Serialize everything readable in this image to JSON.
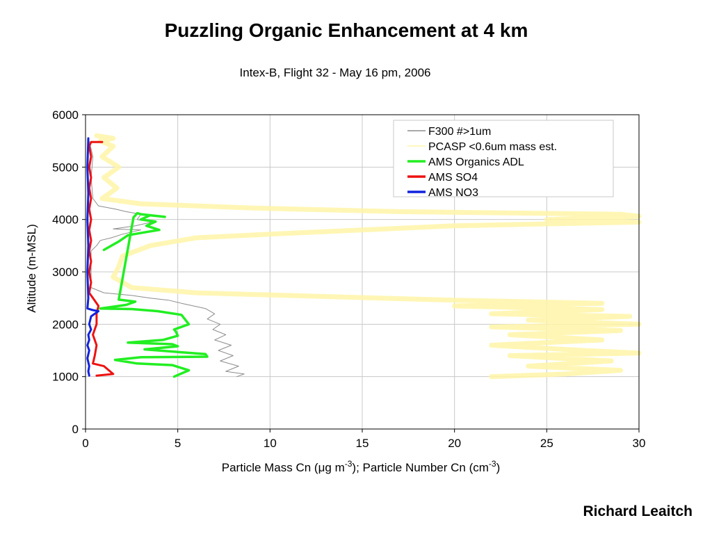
{
  "title": "Puzzling Organic Enhancement at 4 km",
  "subtitle": "Intex-B, Flight 32 - May 16 pm, 2006",
  "author": "Richard Leaitch",
  "chart_data": {
    "type": "line",
    "xlabel_parts": [
      "Particle Mass Cn (",
      "μ",
      "g m",
      "-3",
      "); Particle Number Cn (cm",
      "-3",
      ")"
    ],
    "ylabel": "Altitude (m-MSL)",
    "xlim": [
      0,
      30
    ],
    "ylim": [
      0,
      6000
    ],
    "xticks": [
      0,
      5,
      10,
      15,
      20,
      25,
      30
    ],
    "yticks": [
      0,
      1000,
      2000,
      3000,
      4000,
      5000,
      6000
    ],
    "grid": true,
    "legend_position": "top-right",
    "series": [
      {
        "name": "F300 #>1um",
        "color": "#8c8c8c",
        "points": [
          [
            0.2,
            5500
          ],
          [
            0.4,
            5200
          ],
          [
            0.3,
            4800
          ],
          [
            0.4,
            4400
          ],
          [
            0.7,
            4260
          ],
          [
            1.6,
            4200
          ],
          [
            2.2,
            4150
          ],
          [
            3.0,
            4100
          ],
          [
            2.8,
            4000
          ],
          [
            3.6,
            3950
          ],
          [
            2.7,
            3880
          ],
          [
            1.5,
            3820
          ],
          [
            3.0,
            3800
          ],
          [
            2.0,
            3720
          ],
          [
            1.4,
            3650
          ],
          [
            0.8,
            3600
          ],
          [
            0.6,
            3500
          ],
          [
            0.3,
            3400
          ],
          [
            0.3,
            3000
          ],
          [
            0.3,
            2700
          ],
          [
            1.0,
            2600
          ],
          [
            2.5,
            2550
          ],
          [
            3.5,
            2500
          ],
          [
            4.5,
            2460
          ],
          [
            5.2,
            2400
          ],
          [
            6.5,
            2300
          ],
          [
            7.0,
            2200
          ],
          [
            6.6,
            2100
          ],
          [
            7.3,
            2000
          ],
          [
            6.9,
            1900
          ],
          [
            7.6,
            1800
          ],
          [
            7.0,
            1700
          ],
          [
            7.9,
            1600
          ],
          [
            7.2,
            1500
          ],
          [
            8.0,
            1400
          ],
          [
            7.3,
            1300
          ],
          [
            8.3,
            1200
          ],
          [
            7.6,
            1100
          ],
          [
            8.6,
            1050
          ],
          [
            8.2,
            1000
          ]
        ]
      },
      {
        "name": "PCASP <0.6um mass est.",
        "color": "#fff5a8",
        "points": [
          [
            0.6,
            5600
          ],
          [
            1.5,
            5550
          ],
          [
            0.8,
            5500
          ],
          [
            1.5,
            5400
          ],
          [
            0.9,
            5200
          ],
          [
            1.8,
            5000
          ],
          [
            1.0,
            4800
          ],
          [
            1.7,
            4600
          ],
          [
            0.9,
            4400
          ],
          [
            3.0,
            4300
          ],
          [
            9.0,
            4220
          ],
          [
            17.0,
            4150
          ],
          [
            29.0,
            4100
          ],
          [
            30.0,
            4060
          ],
          [
            25.0,
            4000
          ],
          [
            30.0,
            3950
          ],
          [
            20.0,
            3880
          ],
          [
            15.0,
            3800
          ],
          [
            10.0,
            3720
          ],
          [
            6.0,
            3650
          ],
          [
            3.5,
            3500
          ],
          [
            2.0,
            3300
          ],
          [
            1.8,
            3100
          ],
          [
            1.5,
            2900
          ],
          [
            2.5,
            2700
          ],
          [
            6.0,
            2600
          ],
          [
            14.0,
            2520
          ],
          [
            20.0,
            2460
          ],
          [
            28.0,
            2400
          ],
          [
            20.0,
            2350
          ],
          [
            28.0,
            2280
          ],
          [
            22.0,
            2200
          ],
          [
            29.5,
            2150
          ],
          [
            24.0,
            2080
          ],
          [
            30.0,
            2000
          ],
          [
            22.0,
            1950
          ],
          [
            29.0,
            1880
          ],
          [
            23.0,
            1800
          ],
          [
            28.0,
            1700
          ],
          [
            22.0,
            1600
          ],
          [
            27.0,
            1500
          ],
          [
            30.0,
            1450
          ],
          [
            23.0,
            1400
          ],
          [
            28.5,
            1300
          ],
          [
            24.0,
            1200
          ],
          [
            29.0,
            1120
          ],
          [
            26.0,
            1050
          ],
          [
            22.0,
            1000
          ]
        ]
      },
      {
        "name": "AMS Organics ADL",
        "color": "#22ee22",
        "points": [
          [
            1.0,
            3420
          ],
          [
            1.8,
            3580
          ],
          [
            2.3,
            3700
          ],
          [
            3.3,
            3760
          ],
          [
            4.0,
            3800
          ],
          [
            3.3,
            3880
          ],
          [
            3.8,
            3960
          ],
          [
            3.0,
            4000
          ],
          [
            3.5,
            4080
          ],
          [
            4.3,
            4050
          ],
          [
            3.0,
            4100
          ],
          [
            2.8,
            4120
          ],
          [
            2.6,
            4040
          ],
          [
            1.8,
            2470
          ],
          [
            2.7,
            2430
          ],
          [
            2.2,
            2370
          ],
          [
            1.8,
            2350
          ],
          [
            0.8,
            2300
          ],
          [
            2.5,
            2290
          ],
          [
            3.9,
            2250
          ],
          [
            5.2,
            2180
          ],
          [
            5.6,
            2000
          ],
          [
            4.8,
            1900
          ],
          [
            4.9,
            1860
          ],
          [
            5.0,
            1780
          ],
          [
            4.2,
            1700
          ],
          [
            2.3,
            1650
          ],
          [
            4.7,
            1620
          ],
          [
            5.0,
            1580
          ],
          [
            3.2,
            1520
          ],
          [
            6.5,
            1430
          ],
          [
            6.6,
            1380
          ],
          [
            3.0,
            1370
          ],
          [
            1.6,
            1320
          ],
          [
            2.8,
            1250
          ],
          [
            4.7,
            1220
          ],
          [
            5.6,
            1120
          ],
          [
            5.0,
            1030
          ],
          [
            4.8,
            1000
          ]
        ]
      },
      {
        "name": "AMS SO4",
        "color": "#ee1111",
        "points": [
          [
            0.9,
            5480
          ],
          [
            0.3,
            5480
          ],
          [
            0.2,
            5400
          ],
          [
            0.3,
            5200
          ],
          [
            0.2,
            5000
          ],
          [
            0.3,
            4800
          ],
          [
            0.2,
            4600
          ],
          [
            0.3,
            4400
          ],
          [
            0.2,
            4200
          ],
          [
            0.3,
            4000
          ],
          [
            0.2,
            3800
          ],
          [
            0.3,
            3600
          ],
          [
            0.2,
            3400
          ],
          [
            0.3,
            3200
          ],
          [
            0.2,
            3000
          ],
          [
            0.3,
            2800
          ],
          [
            0.2,
            2600
          ],
          [
            0.5,
            2450
          ],
          [
            0.7,
            2350
          ],
          [
            0.6,
            2200
          ],
          [
            0.6,
            2000
          ],
          [
            0.4,
            1800
          ],
          [
            0.6,
            1600
          ],
          [
            0.5,
            1400
          ],
          [
            0.4,
            1250
          ],
          [
            1.0,
            1200
          ],
          [
            1.5,
            1050
          ],
          [
            0.6,
            1020
          ]
        ]
      },
      {
        "name": "AMS NO3",
        "color": "#1122dd",
        "points": [
          [
            0.15,
            5550
          ],
          [
            0.1,
            5000
          ],
          [
            0.15,
            4500
          ],
          [
            0.1,
            4000
          ],
          [
            0.15,
            3500
          ],
          [
            0.1,
            3000
          ],
          [
            0.15,
            2500
          ],
          [
            0.1,
            2300
          ],
          [
            0.4,
            2270
          ],
          [
            0.7,
            2250
          ],
          [
            0.3,
            2150
          ],
          [
            0.2,
            2000
          ],
          [
            0.3,
            1900
          ],
          [
            0.15,
            1800
          ],
          [
            0.2,
            1700
          ],
          [
            0.1,
            1600
          ],
          [
            0.2,
            1500
          ],
          [
            0.1,
            1350
          ],
          [
            0.2,
            1200
          ],
          [
            0.15,
            1100
          ],
          [
            0.2,
            1020
          ]
        ]
      }
    ]
  }
}
